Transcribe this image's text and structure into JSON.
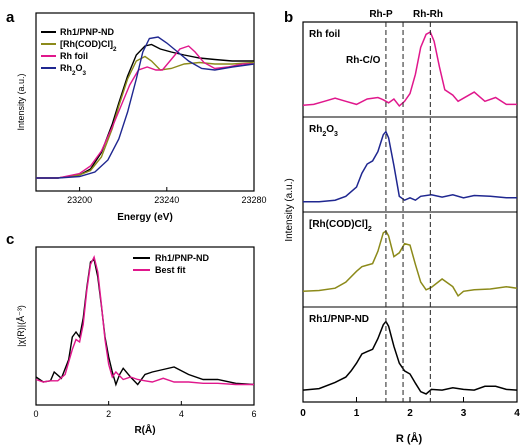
{
  "panel_labels": {
    "a": "a",
    "b": "b",
    "c": "c"
  },
  "colors": {
    "black": "#000000",
    "olive": "#8c8a1a",
    "magenta": "#e0178c",
    "navy": "#1f2790"
  },
  "chart_data": [
    {
      "panel": "a",
      "type": "line",
      "xlabel": "Energy (eV)",
      "ylabel": "Intensity (a.u.)",
      "xlim": [
        23180,
        23280
      ],
      "xticks": [
        "23200",
        "23240",
        "23280"
      ],
      "legend_position": "top-left",
      "series": [
        {
          "name": "Rh1/PNP-ND",
          "color": "#000000",
          "x": [
            23180,
            23190,
            23200,
            23205,
            23210,
            23215,
            23218,
            23222,
            23226,
            23230,
            23233,
            23237,
            23242,
            23248,
            23255,
            23262,
            23270,
            23280
          ],
          "y": [
            0.0,
            0.0,
            0.02,
            0.06,
            0.17,
            0.36,
            0.5,
            0.68,
            0.82,
            0.88,
            0.89,
            0.86,
            0.84,
            0.82,
            0.8,
            0.79,
            0.78,
            0.78
          ]
        },
        {
          "name": "[Rh(COD)Cl]2",
          "color": "#8c8a1a",
          "x": [
            23180,
            23190,
            23200,
            23205,
            23210,
            23215,
            23218,
            23222,
            23226,
            23230,
            23233,
            23237,
            23242,
            23248,
            23255,
            23262,
            23270,
            23280
          ],
          "y": [
            0.0,
            0.0,
            0.02,
            0.05,
            0.14,
            0.33,
            0.48,
            0.66,
            0.78,
            0.81,
            0.78,
            0.72,
            0.73,
            0.76,
            0.77,
            0.76,
            0.76,
            0.77
          ]
        },
        {
          "name": "Rh foil",
          "color": "#e0178c",
          "x": [
            23180,
            23190,
            23200,
            23205,
            23210,
            23215,
            23219,
            23223,
            23227,
            23231,
            23235,
            23238,
            23242,
            23246,
            23250,
            23253,
            23257,
            23262,
            23268,
            23275,
            23280
          ],
          "y": [
            0.0,
            0.0,
            0.03,
            0.08,
            0.18,
            0.34,
            0.48,
            0.62,
            0.72,
            0.74,
            0.72,
            0.72,
            0.79,
            0.86,
            0.88,
            0.84,
            0.77,
            0.73,
            0.74,
            0.76,
            0.76
          ]
        },
        {
          "name": "Rh2O3",
          "color": "#1f2790",
          "x": [
            23180,
            23190,
            23200,
            23207,
            23213,
            23218,
            23222,
            23226,
            23229,
            23232,
            23236,
            23240,
            23245,
            23250,
            23256,
            23262,
            23270,
            23280
          ],
          "y": [
            0.0,
            0.0,
            0.01,
            0.04,
            0.12,
            0.26,
            0.44,
            0.66,
            0.84,
            0.93,
            0.94,
            0.9,
            0.84,
            0.78,
            0.73,
            0.72,
            0.74,
            0.76
          ]
        }
      ]
    },
    {
      "panel": "b",
      "type": "line",
      "xlabel": "R (Å)",
      "ylabel": "Intensity (a.u.)",
      "xlim": [
        0,
        4
      ],
      "xticks": [
        "0",
        "1",
        "2",
        "3",
        "4"
      ],
      "dashed_lines_x": [
        1.55,
        1.87,
        2.38
      ],
      "annotations": [
        "Rh-P",
        "Rh-Rh",
        "Rh-C/O"
      ],
      "series": [
        {
          "name": "Rh foil",
          "color": "#e0178c",
          "x": [
            0,
            0.2,
            0.4,
            0.6,
            0.8,
            1.0,
            1.2,
            1.4,
            1.5,
            1.6,
            1.7,
            1.8,
            1.9,
            2.0,
            2.1,
            2.2,
            2.3,
            2.38,
            2.45,
            2.55,
            2.65,
            2.8,
            2.9,
            3.0,
            3.2,
            3.4,
            3.6,
            3.8,
            4.0
          ],
          "y": [
            0.05,
            0.06,
            0.1,
            0.14,
            0.1,
            0.06,
            0.13,
            0.15,
            0.12,
            0.08,
            0.13,
            0.04,
            0.1,
            0.2,
            0.45,
            0.8,
            0.97,
            1.0,
            0.88,
            0.55,
            0.25,
            0.18,
            0.1,
            0.14,
            0.22,
            0.1,
            0.15,
            0.06,
            0.06
          ]
        },
        {
          "name": "Rh2O3",
          "color": "#1f2790",
          "x": [
            0,
            0.3,
            0.6,
            0.8,
            1.0,
            1.1,
            1.2,
            1.3,
            1.4,
            1.5,
            1.55,
            1.6,
            1.7,
            1.8,
            1.9,
            2.0,
            2.1,
            2.2,
            2.4,
            2.6,
            2.8,
            3.0,
            3.2,
            3.5,
            3.8,
            4.0
          ],
          "y": [
            0.03,
            0.03,
            0.05,
            0.1,
            0.22,
            0.4,
            0.52,
            0.56,
            0.68,
            0.9,
            0.94,
            0.86,
            0.5,
            0.1,
            0.05,
            0.08,
            0.05,
            0.1,
            0.12,
            0.09,
            0.12,
            0.08,
            0.11,
            0.1,
            0.08,
            0.08
          ]
        },
        {
          "name": "[Rh(COD)Cl]2",
          "color": "#8c8a1a",
          "x": [
            0,
            0.3,
            0.6,
            0.8,
            1.0,
            1.1,
            1.2,
            1.3,
            1.4,
            1.5,
            1.55,
            1.6,
            1.7,
            1.8,
            1.9,
            2.0,
            2.1,
            2.2,
            2.3,
            2.4,
            2.6,
            2.8,
            2.9,
            3.0,
            3.2,
            3.5,
            3.8,
            4.0
          ],
          "y": [
            0.1,
            0.11,
            0.14,
            0.22,
            0.36,
            0.42,
            0.44,
            0.46,
            0.62,
            0.86,
            0.88,
            0.82,
            0.55,
            0.6,
            0.72,
            0.7,
            0.45,
            0.22,
            0.12,
            0.15,
            0.26,
            0.16,
            0.04,
            0.1,
            0.12,
            0.13,
            0.16,
            0.14
          ]
        },
        {
          "name": "Rh1/PNP-ND",
          "color": "#000000",
          "x": [
            0,
            0.3,
            0.6,
            0.8,
            0.9,
            1.0,
            1.1,
            1.2,
            1.3,
            1.4,
            1.5,
            1.55,
            1.6,
            1.7,
            1.8,
            1.9,
            2.0,
            2.1,
            2.2,
            2.3,
            2.4,
            2.6,
            2.8,
            3.0,
            3.2,
            3.4,
            3.6,
            3.8,
            4.0
          ],
          "y": [
            0.05,
            0.07,
            0.15,
            0.22,
            0.3,
            0.4,
            0.52,
            0.55,
            0.58,
            0.72,
            0.9,
            0.94,
            0.88,
            0.62,
            0.4,
            0.3,
            0.26,
            0.14,
            0.03,
            0.0,
            0.06,
            0.05,
            0.08,
            0.06,
            0.05,
            0.1,
            0.1,
            0.06,
            0.05
          ]
        }
      ]
    },
    {
      "panel": "c",
      "type": "line",
      "xlabel": "R(Å)",
      "ylabel": "|χ(R)|(Å⁻³)",
      "xlim": [
        0,
        6
      ],
      "xticks": [
        "0",
        "2",
        "4",
        "6"
      ],
      "legend_position": "top-right",
      "series": [
        {
          "name": "Rh1/PNP-ND",
          "color": "#000000",
          "x": [
            0,
            0.2,
            0.4,
            0.5,
            0.7,
            0.9,
            1.0,
            1.1,
            1.2,
            1.3,
            1.4,
            1.5,
            1.6,
            1.7,
            1.8,
            1.9,
            2.0,
            2.1,
            2.2,
            2.3,
            2.4,
            2.6,
            2.8,
            3.0,
            3.2,
            3.5,
            3.8,
            4.2,
            4.6,
            5.0,
            5.5,
            6.0
          ],
          "y": [
            0.08,
            0.04,
            0.05,
            0.12,
            0.07,
            0.22,
            0.4,
            0.44,
            0.4,
            0.55,
            0.8,
            1.0,
            1.02,
            0.88,
            0.65,
            0.4,
            0.24,
            0.12,
            0.02,
            0.1,
            0.15,
            0.08,
            0.02,
            0.1,
            0.12,
            0.14,
            0.16,
            0.1,
            0.06,
            0.06,
            0.03,
            0.02
          ]
        },
        {
          "name": "Best fit",
          "color": "#e0178c",
          "x": [
            0,
            0.2,
            0.4,
            0.6,
            0.8,
            1.0,
            1.1,
            1.2,
            1.3,
            1.4,
            1.5,
            1.6,
            1.7,
            1.8,
            1.9,
            2.0,
            2.1,
            2.2,
            2.4,
            2.6,
            2.8,
            3.0,
            3.2,
            3.5,
            3.8,
            4.2,
            4.6,
            5.0,
            5.5,
            6.0
          ],
          "y": [
            0.06,
            0.04,
            0.05,
            0.05,
            0.1,
            0.3,
            0.38,
            0.36,
            0.5,
            0.78,
            0.98,
            1.04,
            0.92,
            0.66,
            0.38,
            0.18,
            0.08,
            0.12,
            0.06,
            0.08,
            0.06,
            0.05,
            0.04,
            0.07,
            0.04,
            0.04,
            0.03,
            0.03,
            0.02,
            0.02
          ]
        }
      ]
    }
  ]
}
